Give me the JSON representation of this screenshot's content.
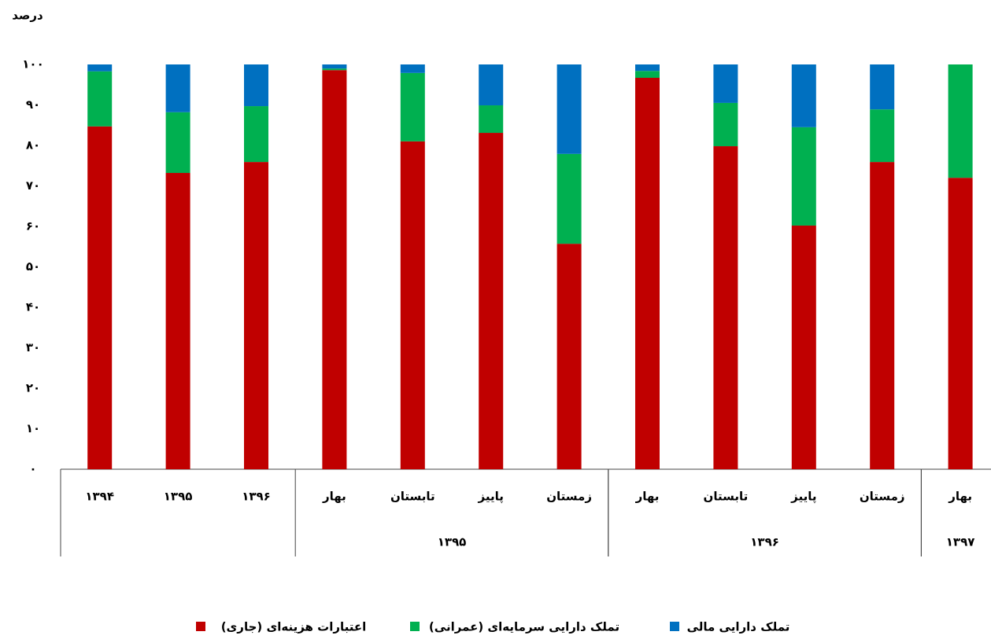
{
  "chart_data": {
    "type": "stacked-bar",
    "y_label": "درصد",
    "categories": [
      "۱۳۹۴",
      "۱۳۹۵",
      "۱۳۹۶",
      "بهار",
      "تابستان",
      "پاییز",
      "زمستان",
      "بهار",
      "تابستان",
      "پاییز",
      "زمستان",
      "بهار"
    ],
    "groups": [
      {
        "label": "۱۳۹۵",
        "from": 3,
        "to": 6
      },
      {
        "label": "۱۳۹۶",
        "from": 7,
        "to": 10
      },
      {
        "label": "۱۳۹۷",
        "from": 11,
        "to": 11
      }
    ],
    "series": [
      {
        "name": "اعتبارات هزینه‌ای (جاری)",
        "color": "#c00000",
        "values": [
          84.7,
          73.2,
          75.9,
          98.6,
          81.0,
          83.1,
          55.7,
          96.7,
          79.8,
          60.2,
          75.9,
          72.0
        ]
      },
      {
        "name": "تملک دارایی سرمایه‌ای (عمرانی)",
        "color": "#00b050",
        "values": [
          13.6,
          15.0,
          13.8,
          0.4,
          16.9,
          6.8,
          22.2,
          1.7,
          10.7,
          24.3,
          13.0,
          28.0
        ]
      },
      {
        "name": "تملک دارایی مالی",
        "color": "#0070c0",
        "values": [
          1.7,
          11.8,
          10.3,
          1.0,
          2.1,
          10.1,
          22.1,
          1.6,
          9.5,
          15.5,
          11.1,
          0
        ]
      }
    ],
    "ylim": [
      0,
      100
    ],
    "yticks": [
      {
        "value": 0,
        "label": "۰"
      },
      {
        "value": 10,
        "label": "۱۰"
      },
      {
        "value": 20,
        "label": "۲۰"
      },
      {
        "value": 30,
        "label": "۳۰"
      },
      {
        "value": 40,
        "label": "۴۰"
      },
      {
        "value": 50,
        "label": "۵۰"
      },
      {
        "value": 60,
        "label": "۶۰"
      },
      {
        "value": 70,
        "label": "۷۰"
      },
      {
        "value": 80,
        "label": "۸۰"
      },
      {
        "value": 90,
        "label": "۹۰"
      },
      {
        "value": 100,
        "label": "۱۰۰"
      }
    ],
    "grid": false
  }
}
